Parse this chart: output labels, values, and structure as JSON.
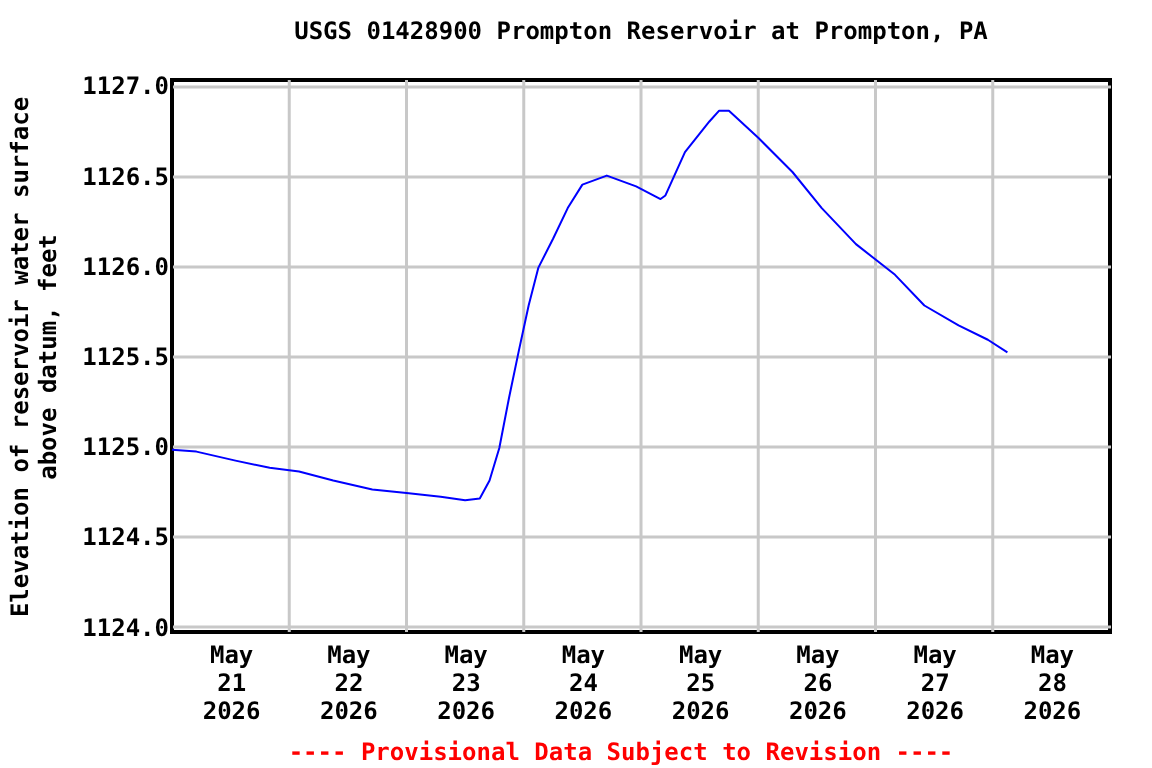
{
  "chart_data": {
    "type": "line",
    "title": "USGS 01428900 Prompton Reservoir at Prompton, PA",
    "ylabel": "Elevation of reservoir water surface\nabove datum, feet",
    "annotations": [
      "---- Provisional Data Subject to Revision ----"
    ],
    "x": [
      "2026-05-21T00:00",
      "2026-05-21T05:00",
      "2026-05-21T13:00",
      "2026-05-21T20:00",
      "2026-05-22T02:00",
      "2026-05-22T09:00",
      "2026-05-22T17:00",
      "2026-05-23T00:00",
      "2026-05-23T07:00",
      "2026-05-23T12:00",
      "2026-05-23T15:00",
      "2026-05-23T17:00",
      "2026-05-23T19:00",
      "2026-05-23T21:00",
      "2026-05-23T23:00",
      "2026-05-24T01:00",
      "2026-05-24T03:00",
      "2026-05-24T06:00",
      "2026-05-24T09:00",
      "2026-05-24T12:00",
      "2026-05-24T17:00",
      "2026-05-24T23:00",
      "2026-05-25T04:00",
      "2026-05-25T05:00",
      "2026-05-25T09:00",
      "2026-05-25T14:00",
      "2026-05-25T16:00",
      "2026-05-25T18:00",
      "2026-05-26T00:00",
      "2026-05-26T07:00",
      "2026-05-26T13:00",
      "2026-05-26T20:00",
      "2026-05-27T04:00",
      "2026-05-27T10:00",
      "2026-05-27T17:00",
      "2026-05-27T23:00",
      "2026-05-28T03:00"
    ],
    "series": [
      {
        "color": "#0000ff",
        "values": [
          1124.98,
          1124.97,
          1124.92,
          1124.88,
          1124.86,
          1124.81,
          1124.76,
          1124.74,
          1124.72,
          1124.7,
          1124.71,
          1124.81,
          1124.99,
          1125.27,
          1125.53,
          1125.78,
          1125.99,
          1126.15,
          1126.32,
          1126.45,
          1126.5,
          1126.44,
          1126.37,
          1126.39,
          1126.63,
          1126.8,
          1126.86,
          1126.86,
          1126.71,
          1126.52,
          1126.32,
          1126.12,
          1125.95,
          1125.78,
          1125.67,
          1125.59,
          1125.52
        ]
      }
    ],
    "xlim": [
      "2026-05-21T00:00",
      "2026-05-29T00:00"
    ],
    "xticks": [
      {
        "value": "2026-05-21T12:00",
        "label": "May\n21\n2026"
      },
      {
        "value": "2026-05-22T00:00",
        "label": null
      },
      {
        "value": "2026-05-22T12:00",
        "label": "May\n22\n2026"
      },
      {
        "value": "2026-05-23T00:00",
        "label": null
      },
      {
        "value": "2026-05-23T12:00",
        "label": "May\n23\n2026"
      },
      {
        "value": "2026-05-24T00:00",
        "label": null
      },
      {
        "value": "2026-05-24T12:00",
        "label": "May\n24\n2026"
      },
      {
        "value": "2026-05-25T00:00",
        "label": null
      },
      {
        "value": "2026-05-25T12:00",
        "label": "May\n25\n2026"
      },
      {
        "value": "2026-05-26T00:00",
        "label": null
      },
      {
        "value": "2026-05-26T12:00",
        "label": "May\n26\n2026"
      },
      {
        "value": "2026-05-27T00:00",
        "label": null
      },
      {
        "value": "2026-05-27T12:00",
        "label": "May\n27\n2026"
      },
      {
        "value": "2026-05-28T00:00",
        "label": null
      },
      {
        "value": "2026-05-28T12:00",
        "label": "May\n28\n2026"
      }
    ],
    "ylim": [
      1123.97,
      1127.03
    ],
    "yticks": [
      {
        "value": 1124,
        "label": "1124.0"
      },
      {
        "value": 1124.5,
        "label": "1124.5"
      },
      {
        "value": 1125,
        "label": "1125.0"
      },
      {
        "value": 1125.5,
        "label": "1125.5"
      },
      {
        "value": 1126,
        "label": "1126.0"
      },
      {
        "value": 1126.5,
        "label": "1126.5"
      },
      {
        "value": 1127,
        "label": "1127.0"
      }
    ],
    "grid": true,
    "marker": "none",
    "line_style": "solid"
  }
}
